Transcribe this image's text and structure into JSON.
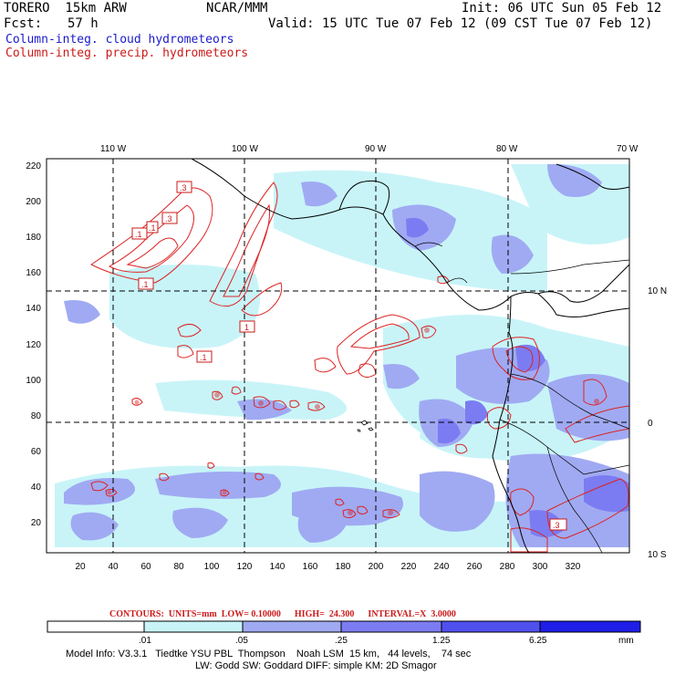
{
  "header": {
    "model": "TORERO  15km ARW",
    "org": "NCAR/MMM",
    "init": "Init: 06 UTC Sun 05 Feb 12",
    "fcst_label": "Fcst:",
    "fcst_value": "57 h",
    "valid": "Valid: 15 UTC Tue 07 Feb 12 (09 CST Tue 07 Feb 12)",
    "field1": "Column-integ. cloud hydrometeors",
    "field2": "Column-integ. precip. hydrometeors"
  },
  "axes": {
    "top_lon": [
      "110 W",
      "100 W",
      "90 W",
      "80 W",
      "70 W"
    ],
    "right_lat": [
      "10 N",
      "0",
      "10 S"
    ],
    "left_y": [
      "220",
      "200",
      "180",
      "160",
      "140",
      "120",
      "100",
      "80",
      "60",
      "40",
      "20"
    ],
    "bottom_x": [
      "20",
      "40",
      "60",
      "80",
      "100",
      "120",
      "140",
      "160",
      "180",
      "200",
      "220",
      "240",
      "260",
      "280",
      "300",
      "320"
    ]
  },
  "contour_labels": [
    ".3",
    ".3",
    ".1",
    ".1",
    ".1",
    "1",
    ".1",
    ".3"
  ],
  "contours_info": "CONTOURS:  UNITS=mm  LOW= 0.10000      HIGH=  24.300      INTERVAL=X  3.0000",
  "colorbar": {
    "ticks": [
      ".01",
      ".05",
      ".25",
      "1.25",
      "6.25"
    ],
    "unit": "mm",
    "colors": [
      "#ffffff",
      "#c8f4f8",
      "#a0aaf2",
      "#7c7cf2",
      "#5050ee",
      "#1e1ee8"
    ]
  },
  "footer": {
    "line1": "Model Info: V3.3.1   Tiedtke YSU PBL  Thompson    Noah LSM  15 km,   44 levels,    74 sec",
    "line2": "LW: Godd SW: Goddard DIFF: simple KM: 2D Smagor"
  }
}
